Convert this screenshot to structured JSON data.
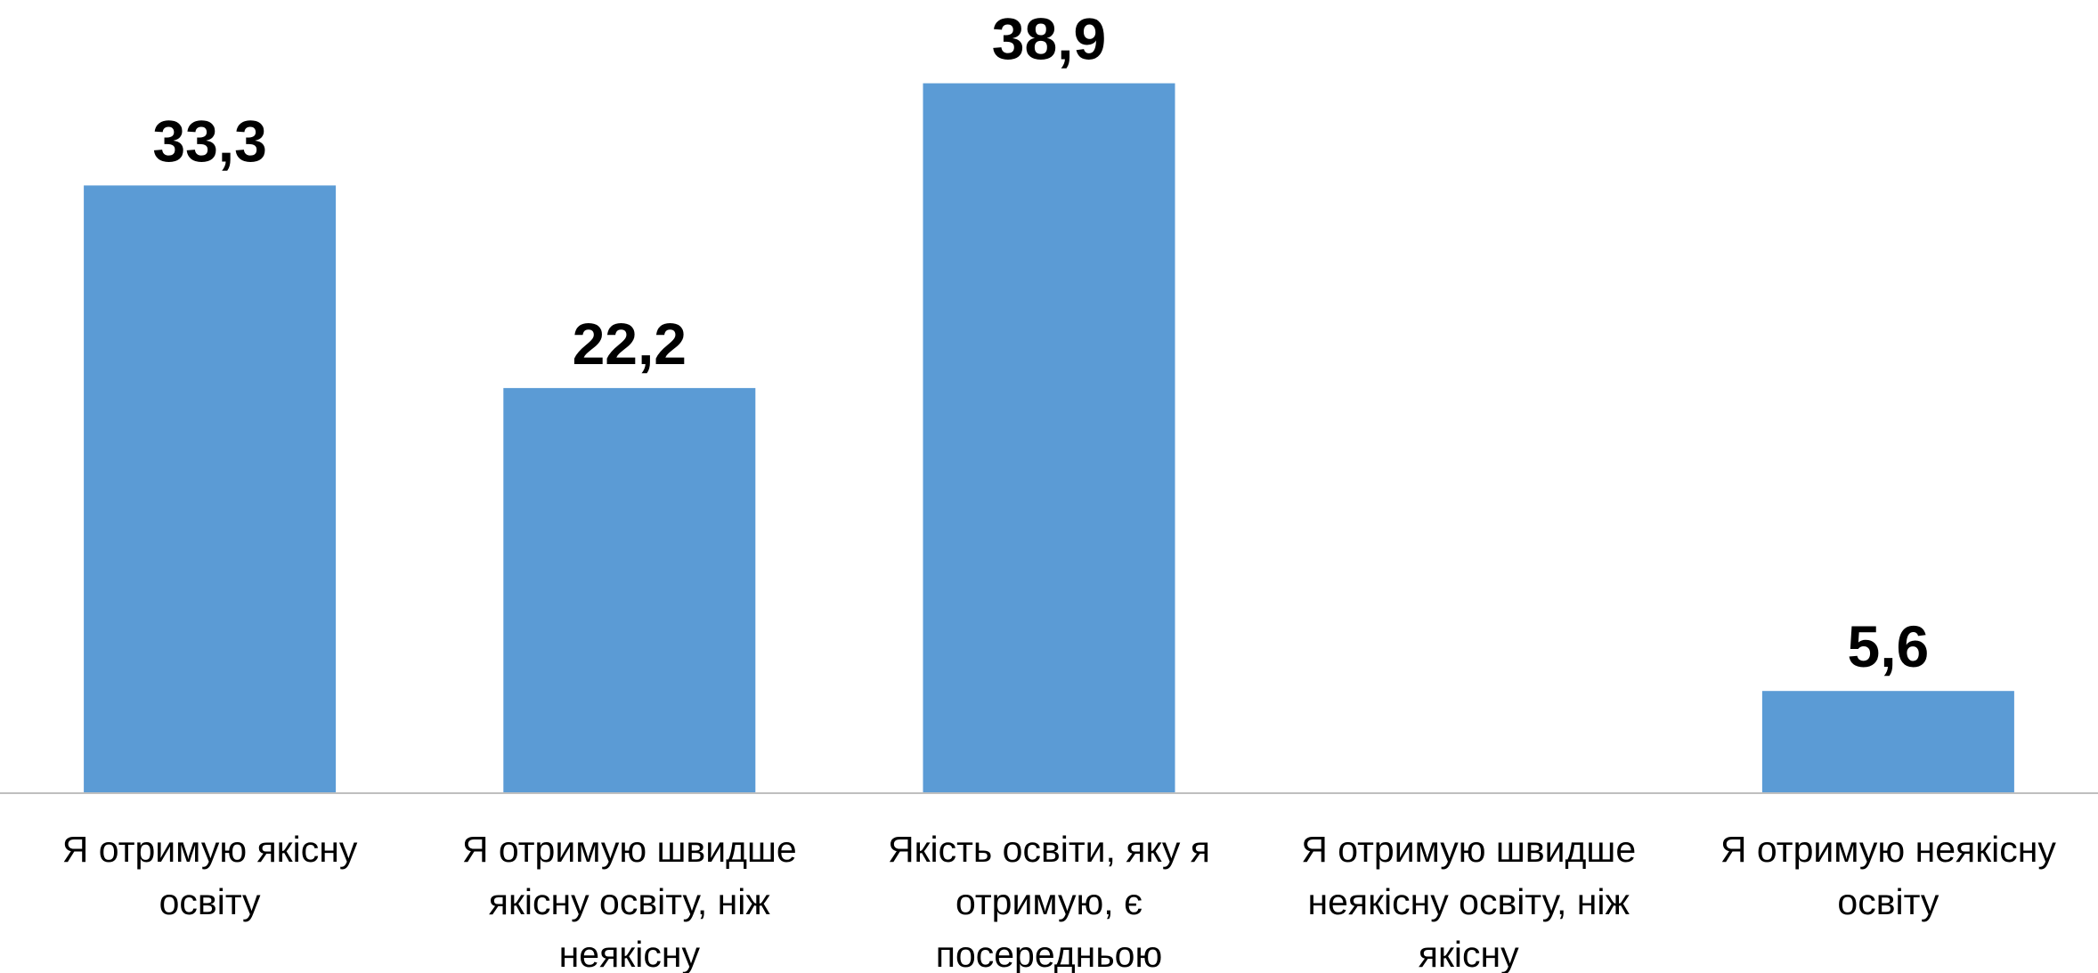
{
  "chart_data": {
    "type": "bar",
    "categories": [
      [
        "Я отримую якісну",
        "освіту"
      ],
      [
        "Я отримую швидше",
        "якісну освіту, ніж",
        "неякісну"
      ],
      [
        "Якість освіти, яку я",
        "отримую, є",
        "посередньою"
      ],
      [
        "Я отримую швидше",
        "неякісну освіту, ніж",
        "якісну"
      ],
      [
        "Я отримую неякісну",
        "освіту"
      ]
    ],
    "values": [
      33.3,
      22.2,
      38.9,
      null,
      5.6
    ],
    "data_labels": [
      "33,3",
      "22,2",
      "38,9",
      "",
      "5,6"
    ],
    "bar_color": "#5b9bd5",
    "axis_color": "#bfbfbf",
    "ylim": [
      0,
      40
    ],
    "grid": false,
    "legend": "none"
  }
}
